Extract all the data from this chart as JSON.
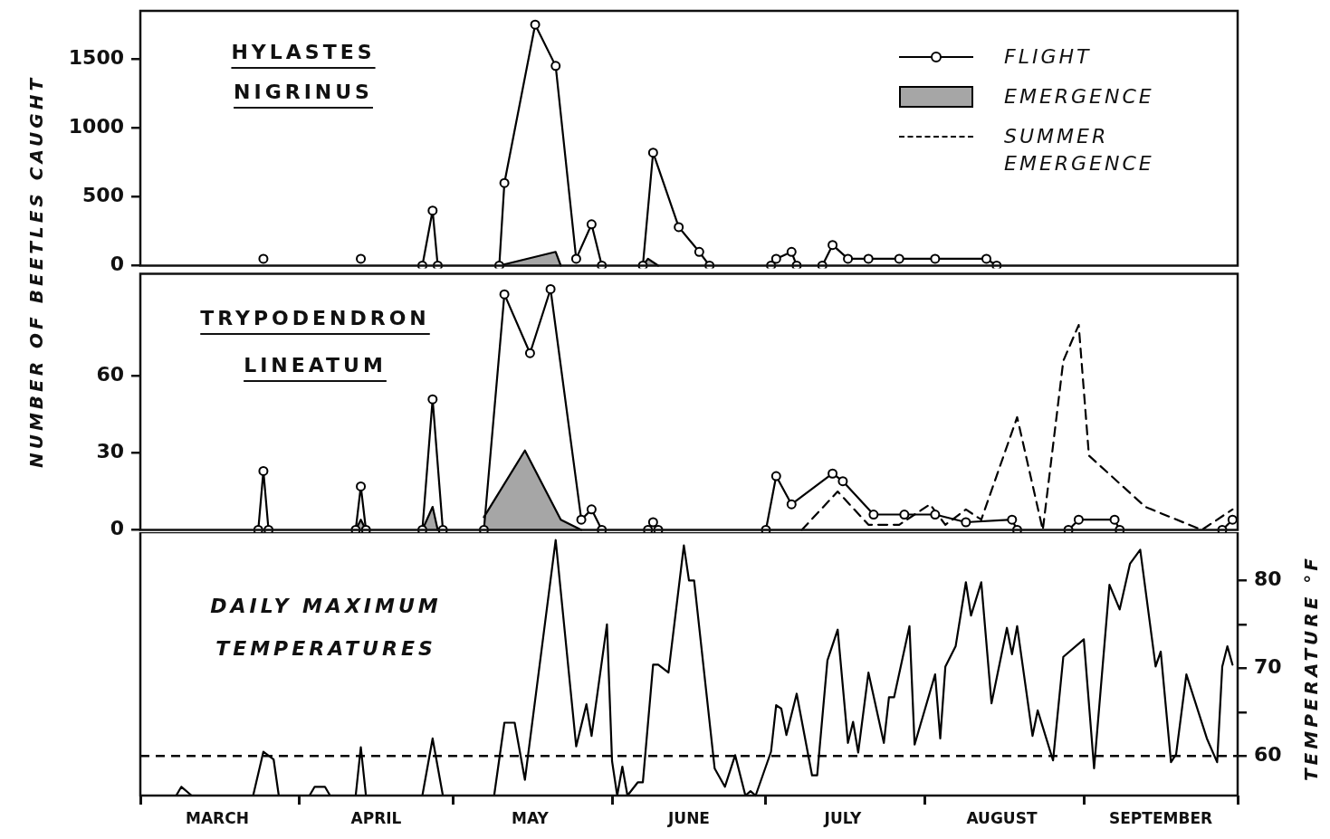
{
  "chart_data": [
    {
      "type": "line",
      "title": "HYLASTES NIGRINUS",
      "ylabel": "NUMBER OF BEETLES CAUGHT",
      "xlim": [
        "--03-01",
        "--10-01"
      ],
      "ylim": [
        0,
        1850
      ],
      "yticks": [
        0,
        500,
        1000,
        1500
      ],
      "tick_labels": "y",
      "legend": "top right",
      "series": [
        {
          "name": "FLIGHT",
          "type": "line",
          "marker": "circle",
          "line_style": "solid",
          "color": "#000000",
          "x": [
            "--03-25",
            "--04-04",
            "--04-13",
            "--04-20",
            "--04-25",
            "--04-27",
            "--04-28",
            "--05-04",
            "--05-10",
            "--05-11",
            "--05-17",
            "--05-21",
            "--05-25",
            "--05-28",
            "--05-30",
            "--06-03",
            "--06-07",
            "--06-09",
            "--06-14",
            "--06-18",
            "--06-20",
            "--06-26",
            "--07-02",
            "--07-03",
            "--07-06",
            "--07-07",
            "--07-09",
            "--07-12",
            "--07-14",
            "--07-17",
            "--07-21",
            "--07-27",
            "--08-03",
            "--08-13",
            "--08-15"
          ],
          "values": [
            50,
            null,
            50,
            null,
            0,
            400,
            0,
            null,
            0,
            600,
            1750,
            1450,
            50,
            300,
            0,
            null,
            0,
            820,
            280,
            100,
            0,
            null,
            0,
            50,
            100,
            0,
            null,
            0,
            150,
            50,
            50,
            50,
            50,
            50,
            0
          ]
        },
        {
          "name": "EMERGENCE",
          "type": "area",
          "marker": "none",
          "line_style": "solid",
          "color": "#000000",
          "x": [
            "--05-10",
            "--05-21",
            "--05-22",
            "--05-30",
            "--06-07",
            "--06-08",
            "--06-10"
          ],
          "values": [
            0,
            100,
            0,
            null,
            0,
            50,
            0
          ]
        }
      ]
    },
    {
      "type": "line",
      "title": "TRYPODENDRON LINEATUM",
      "xlim": [
        "--03-01",
        "--10-01"
      ],
      "ylim": [
        0,
        100
      ],
      "yticks": [
        0,
        30,
        60
      ],
      "tick_labels": "y",
      "series": [
        {
          "type": "line",
          "marker": "circle",
          "line_style": "solid",
          "color": "#000000",
          "x": [
            "--03-24",
            "--03-25",
            "--03-26",
            "--04-04",
            "--04-12",
            "--04-13",
            "--04-14",
            "--04-20",
            "--04-25",
            "--04-27",
            "--04-29",
            "--05-03",
            "--05-07",
            "--05-11",
            "--05-16",
            "--05-20",
            "--05-26",
            "--05-28",
            "--05-30",
            "--06-04",
            "--06-08",
            "--06-09",
            "--06-10",
            "--06-19",
            "--07-01",
            "--07-03",
            "--07-06",
            "--07-14",
            "--07-16",
            "--07-22",
            "--07-28",
            "--08-03",
            "--08-09",
            "--08-18",
            "--08-19",
            "--08-24",
            "--08-29",
            "--08-31",
            "--09-07",
            "--09-08",
            "--09-17",
            "--09-28",
            "--09-30"
          ],
          "values": [
            0,
            23,
            0,
            null,
            0,
            17,
            0,
            null,
            0,
            51,
            0,
            null,
            0,
            92,
            69,
            94,
            4,
            8,
            0,
            null,
            0,
            3,
            0,
            null,
            0,
            21,
            10,
            22,
            19,
            6,
            6,
            6,
            3,
            4,
            0,
            null,
            0,
            4,
            4,
            0,
            null,
            0,
            4
          ]
        },
        {
          "type": "area",
          "marker": "none",
          "line_style": "solid",
          "color": "#000000",
          "x": [
            "--04-12",
            "--04-13",
            "--04-14",
            "--04-20",
            "--04-25",
            "--04-27",
            "--04-28",
            "--05-03",
            "--05-07",
            "--05-15",
            "--05-22",
            "--05-26"
          ],
          "values": [
            0,
            4,
            0,
            null,
            0,
            9,
            0,
            null,
            5,
            31,
            4,
            0
          ]
        },
        {
          "name": "SUMMER EMERGENCE",
          "type": "line",
          "marker": "none",
          "line_style": "dashed",
          "color": "#000000",
          "x": [
            "--07-08",
            "--07-15",
            "--07-21",
            "--07-27",
            "--08-02",
            "--08-05",
            "--08-09",
            "--08-12",
            "--08-19",
            "--08-24",
            "--08-28",
            "--08-31",
            "--09-02",
            "--09-13",
            "--09-24",
            "--09-30"
          ],
          "values": [
            0,
            15,
            2,
            2,
            10,
            2,
            8,
            4,
            44,
            0,
            66,
            80,
            29,
            9,
            0,
            8
          ]
        }
      ]
    },
    {
      "type": "line",
      "title": "DAILY MAXIMUM TEMPERATURES",
      "y2label": "TEMPERATURE °F",
      "xlim": [
        "--03-01",
        "--10-01"
      ],
      "xticks": [
        {
          "value": "--03-01",
          "label": null
        },
        {
          "value": "--03-16",
          "label": "MARCH"
        },
        {
          "value": "--04-01",
          "label": null
        },
        {
          "value": "--04-16",
          "label": "APRIL"
        },
        {
          "value": "--05-01",
          "label": null
        },
        {
          "value": "--05-16",
          "label": "MAY"
        },
        {
          "value": "--06-01",
          "label": null
        },
        {
          "value": "--06-16",
          "label": "JUNE"
        },
        {
          "value": "--07-01",
          "label": null
        },
        {
          "value": "--07-16",
          "label": "JULY"
        },
        {
          "value": "--08-01",
          "label": null
        },
        {
          "value": "--08-16",
          "label": "AUGUST"
        },
        {
          "value": "--09-01",
          "label": null
        },
        {
          "value": "--09-16",
          "label": "SEPTEMBER"
        },
        {
          "value": "--10-01",
          "label": null
        }
      ],
      "y2lim": [
        55.5,
        85.5
      ],
      "y2ticks": [
        60,
        {
          "value": 65,
          "label": null
        },
        70,
        {
          "value": 75,
          "label": null
        },
        80
      ],
      "ref_lines": [
        {
          "axis": "y2",
          "value": 60,
          "label": null,
          "color": "#000000",
          "line_style": "dashed"
        }
      ],
      "series": [
        {
          "type": "line",
          "axis": "y2",
          "marker": "none",
          "line_style": "solid",
          "color": "#000000",
          "x": [
            "--03-01",
            "--03-08",
            "--03-09",
            "--03-11",
            "--03-23",
            "--03-25",
            "--03-27",
            "--03-28",
            "--04-03",
            "--04-04",
            "--04-06",
            "--04-07",
            "--04-12",
            "--04-13",
            "--04-14",
            "--04-25",
            "--04-27",
            "--04-29",
            "--05-09",
            "--05-11",
            "--05-13",
            "--05-15",
            "--05-21",
            "--05-25",
            "--05-27",
            "--05-28",
            "--05-31",
            "--06-01",
            "--06-02",
            "--06-03",
            "--06-04",
            "--06-06",
            "--06-07",
            "--06-09",
            "--06-10",
            "--06-12",
            "--06-15",
            "--06-16",
            "--06-17",
            "--06-21",
            "--06-23",
            "--06-25",
            "--06-27",
            "--06-28",
            "--06-29",
            "--07-02",
            "--07-03",
            "--07-04",
            "--07-05",
            "--07-07",
            "--07-10",
            "--07-11",
            "--07-13",
            "--07-15",
            "--07-17",
            "--07-18",
            "--07-19",
            "--07-21",
            "--07-24",
            "--07-25",
            "--07-26",
            "--07-29",
            "--07-30",
            "--08-03",
            "--08-04",
            "--08-05",
            "--08-07",
            "--08-09",
            "--08-10",
            "--08-12",
            "--08-14",
            "--08-17",
            "--08-18",
            "--08-19",
            "--08-22",
            "--08-23",
            "--08-26",
            "--08-28",
            "--09-01",
            "--09-03",
            "--09-06",
            "--09-08",
            "--09-10",
            "--09-12",
            "--09-15",
            "--09-16",
            "--09-18",
            "--09-19",
            "--09-21",
            "--09-25",
            "--09-27",
            "--09-28",
            "--09-29",
            "--09-30"
          ],
          "values": [
            55.5,
            55.5,
            56.5,
            55.5,
            55.5,
            60.5,
            59.6,
            55.5,
            55.5,
            56.5,
            56.5,
            55.5,
            55.5,
            61,
            55.5,
            55.5,
            62,
            55.5,
            55.5,
            63.8,
            63.8,
            57.3,
            84.6,
            61.1,
            65.9,
            62.3,
            75,
            59.4,
            55.5,
            58.8,
            55.5,
            57,
            57,
            70.4,
            70.4,
            69.5,
            84,
            80,
            80,
            58.6,
            56.5,
            60.1,
            55.5,
            56,
            55.5,
            60.5,
            65.8,
            65.4,
            62.4,
            67.1,
            57.8,
            57.8,
            70.9,
            74.4,
            61.5,
            63.9,
            60.4,
            69.5,
            61.5,
            66.7,
            66.7,
            74.8,
            61.3,
            69.3,
            62,
            70.2,
            72.5,
            79.8,
            76,
            79.8,
            66,
            74.6,
            71.6,
            74.8,
            62.3,
            65.2,
            59.5,
            71.3,
            73.3,
            58.6,
            79.5,
            76.7,
            81.9,
            83.5,
            70.2,
            71.9,
            59.3,
            60.2,
            69.3,
            62,
            59.3,
            70.2,
            72.5,
            70.4
          ]
        }
      ]
    }
  ]
}
